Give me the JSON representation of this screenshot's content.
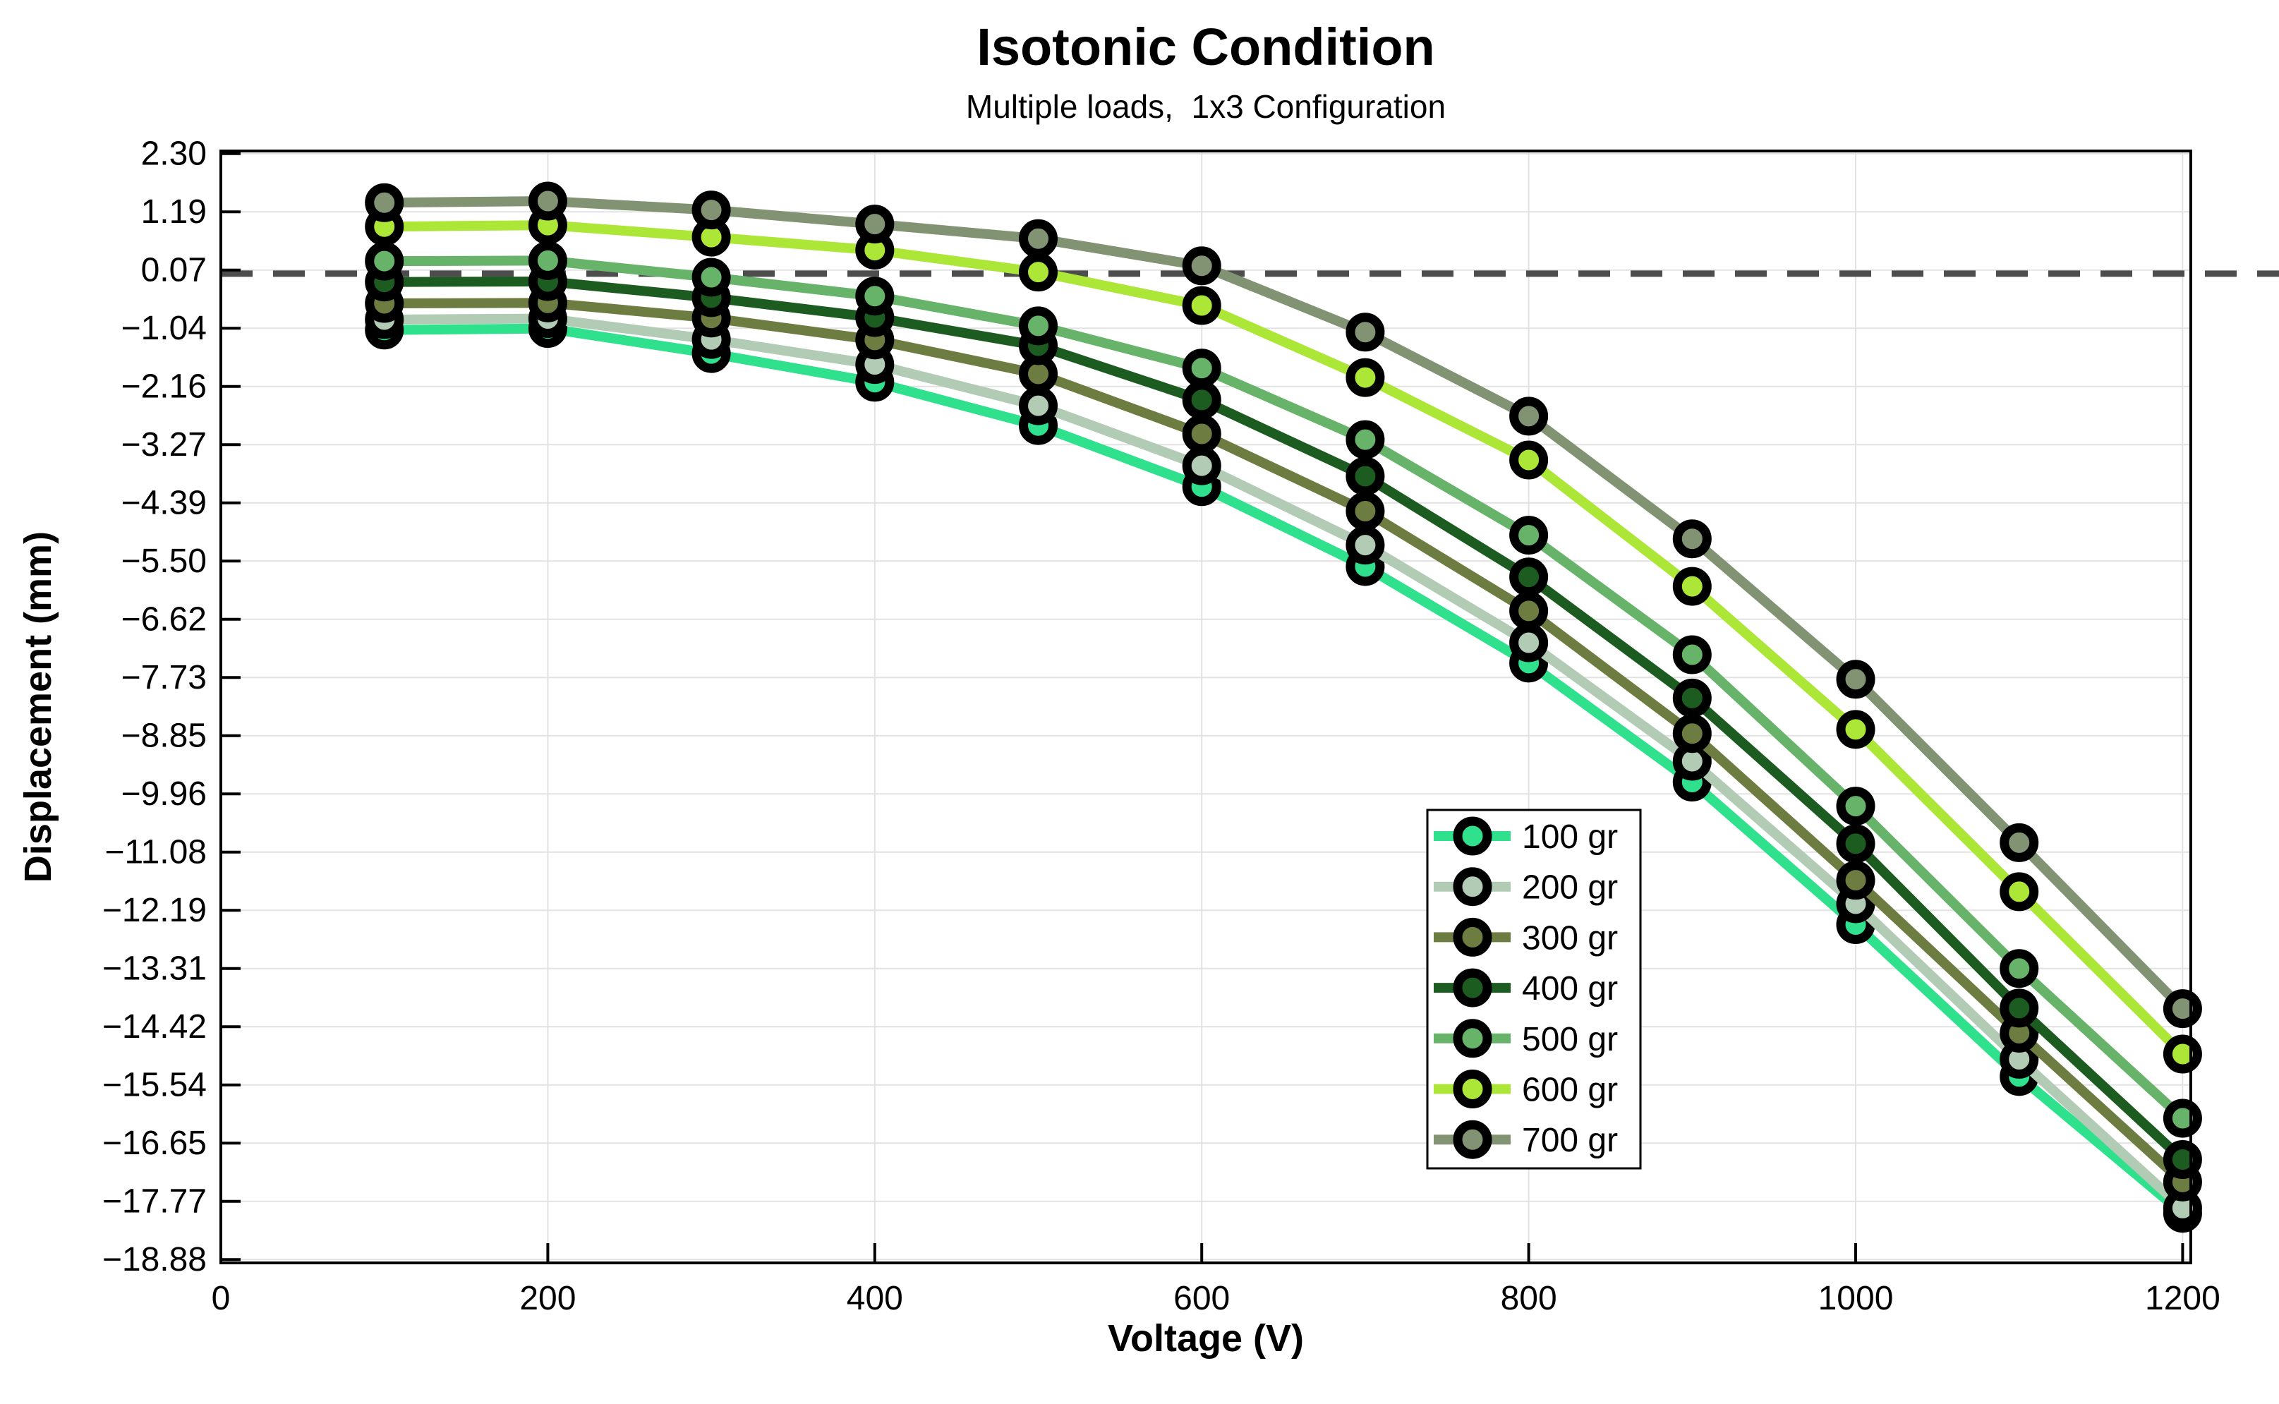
{
  "figure": {
    "title": "Isotonic Condition",
    "subtitle": "Multiple loads,  1x3 Configuration"
  },
  "chart_data": {
    "type": "line",
    "title": "Isotonic Condition",
    "subtitle": "Multiple loads,  1x3 Configuration",
    "xlabel": "Voltage (V)",
    "ylabel": "Displacement (mm)",
    "xlim": [
      0,
      1205
    ],
    "ylim": [
      -18.95,
      2.35
    ],
    "grid": true,
    "grid_color": "#e2e2e2",
    "axis_color": "#000000",
    "zero_line": {
      "value": 0.0,
      "style": "dashed",
      "color": "#4d4d4d"
    },
    "x": [
      100,
      200,
      300,
      400,
      500,
      600,
      700,
      800,
      900,
      1000,
      1100,
      1200
    ],
    "x_ticks": [
      0,
      200,
      400,
      600,
      800,
      1000,
      1200
    ],
    "y_ticks": [
      {
        "label": "2.30",
        "value": 2.3
      },
      {
        "label": "1.19",
        "value": 1.185
      },
      {
        "label": "0.07",
        "value": 0.07
      },
      {
        "label": "−1.04",
        "value": -1.045
      },
      {
        "label": "−2.16",
        "value": -2.16
      },
      {
        "label": "−3.27",
        "value": -3.275
      },
      {
        "label": "−4.39",
        "value": -4.39
      },
      {
        "label": "−5.50",
        "value": -5.505
      },
      {
        "label": "−6.62",
        "value": -6.62
      },
      {
        "label": "−7.73",
        "value": -7.735
      },
      {
        "label": "−8.85",
        "value": -8.85
      },
      {
        "label": "−9.96",
        "value": -9.965
      },
      {
        "label": "−11.08",
        "value": -11.08
      },
      {
        "label": "−12.19",
        "value": -12.195
      },
      {
        "label": "−13.31",
        "value": -13.31
      },
      {
        "label": "−14.42",
        "value": -14.425
      },
      {
        "label": "−15.54",
        "value": -15.54
      },
      {
        "label": "−16.65",
        "value": -16.655
      },
      {
        "label": "−17.77",
        "value": -17.77
      },
      {
        "label": "−18.88",
        "value": -18.885
      }
    ],
    "legend": {
      "position": "inside-lower-right"
    },
    "series": [
      {
        "name": "100 gr",
        "color": "#2FE08D",
        "values": [
          -1.08,
          -1.05,
          -1.53,
          -2.08,
          -2.91,
          -4.08,
          -5.61,
          -7.46,
          -9.74,
          -12.47,
          -15.38,
          -18.0
        ]
      },
      {
        "name": "200 gr",
        "color": "#B2CBB4",
        "values": [
          -0.88,
          -0.86,
          -1.26,
          -1.74,
          -2.53,
          -3.68,
          -5.2,
          -7.07,
          -9.34,
          -12.07,
          -15.05,
          -17.9
        ]
      },
      {
        "name": "300 gr",
        "color": "#6D7C40",
        "values": [
          -0.57,
          -0.56,
          -0.85,
          -1.27,
          -1.92,
          -3.07,
          -4.55,
          -6.46,
          -8.81,
          -11.62,
          -14.55,
          -17.4
        ]
      },
      {
        "name": "400 gr",
        "color": "#1D5C21",
        "values": [
          -0.16,
          -0.15,
          -0.46,
          -0.84,
          -1.38,
          -2.42,
          -3.88,
          -5.81,
          -8.13,
          -10.92,
          -14.07,
          -16.97
        ]
      },
      {
        "name": "500 gr",
        "color": "#66B369",
        "values": [
          0.24,
          0.25,
          -0.07,
          -0.43,
          -1.0,
          -1.81,
          -3.18,
          -5.01,
          -7.3,
          -10.2,
          -13.31,
          -16.18
        ]
      },
      {
        "name": "600 gr",
        "color": "#ACE637",
        "values": [
          0.9,
          0.93,
          0.7,
          0.45,
          0.03,
          -0.61,
          -1.99,
          -3.57,
          -5.99,
          -8.73,
          -11.84,
          -14.95
        ]
      },
      {
        "name": "700 gr",
        "color": "#819372",
        "values": [
          1.36,
          1.39,
          1.22,
          0.95,
          0.67,
          0.15,
          -1.12,
          -2.73,
          -5.08,
          -7.77,
          -10.9,
          -14.08
        ]
      }
    ]
  }
}
